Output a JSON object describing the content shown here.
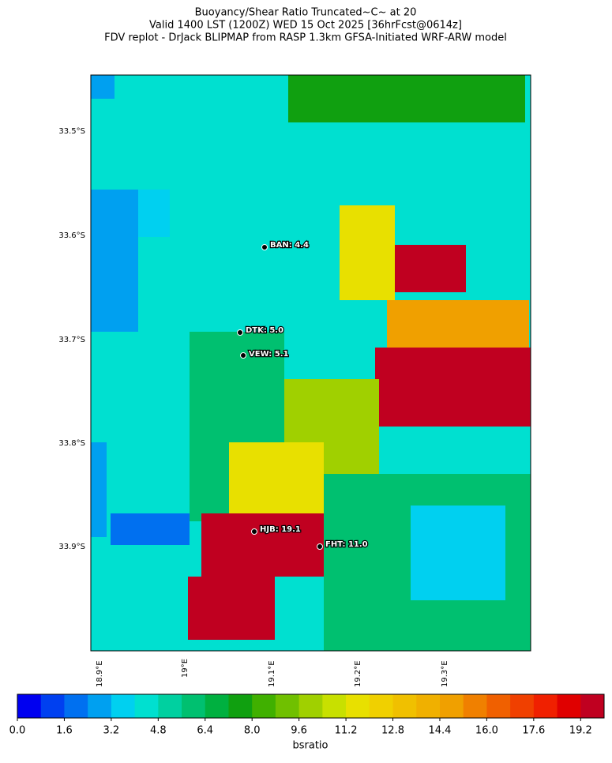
{
  "header": {
    "title_lines": [
      "Buoyancy/Shear Ratio Truncated~C~    at 20",
      "Valid 1400 LST (1200Z) WED 15 Oct 2025 [36hrFcst@0614z]",
      "FDV replot - DrJack BLIPMAP from RASP 1.3km GFSA-Initiated WRF-ARW model"
    ]
  },
  "map": {
    "lat_labels": [
      "33.5°S",
      "33.6°S",
      "33.7°S",
      "33.8°S",
      "33.9°S"
    ],
    "lon_labels": [
      "18.9°E",
      "19°E",
      "19.1°E",
      "19.2°E",
      "19.3°E"
    ],
    "stations": [
      {
        "label": "BAN: 4.4"
      },
      {
        "label": "DTK: 5.0"
      },
      {
        "label": "VEW: 5.1"
      },
      {
        "label": "HJB: 19.1"
      },
      {
        "label": "FHT: 11.0"
      }
    ]
  },
  "colorbar": {
    "tick_labels": [
      "0.0",
      "1.6",
      "3.2",
      "4.8",
      "6.4",
      "8.0",
      "9.6",
      "11.2",
      "12.8",
      "14.4",
      "16.0",
      "17.6",
      "19.2"
    ],
    "label": "bsratio",
    "colors": [
      "#0000f0",
      "#0040f0",
      "#0070f0",
      "#00a0f0",
      "#00d0f0",
      "#00e0d0",
      "#00d0a0",
      "#00c070",
      "#00b040",
      "#10a010",
      "#40b000",
      "#70c000",
      "#a0d000",
      "#c8e000",
      "#e8e000",
      "#f0d000",
      "#f0c000",
      "#f0b000",
      "#f0a000",
      "#f08000",
      "#f06000",
      "#f04000",
      "#f02000",
      "#e00000",
      "#c00020"
    ]
  }
}
